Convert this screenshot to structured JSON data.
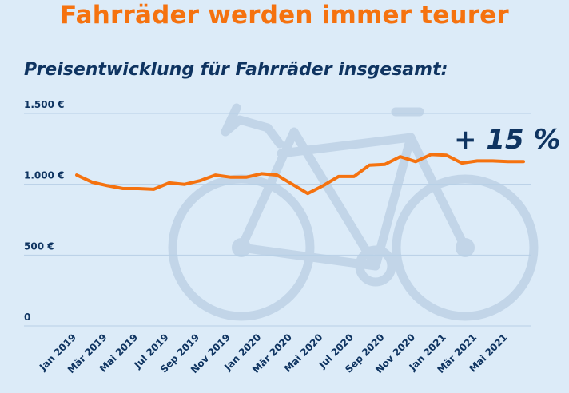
{
  "headline": "Fahrräder werden immer teurer",
  "colors": {
    "background": "#dcebf8",
    "headline": "#f5720f",
    "text": "#0f3461",
    "line": "#f5720f",
    "bike": "#c2d5e8",
    "grid": "#b7cfe6"
  },
  "icons": [
    "bicycle-icon"
  ],
  "chart_data": {
    "type": "line",
    "title": "Preisentwicklung für Fahrräder insgesamt:",
    "xlabel": "",
    "ylabel": "",
    "ylim": [
      0,
      1500
    ],
    "yticks": [
      0,
      500,
      1000,
      1500
    ],
    "ytick_labels": [
      "0",
      "500 €",
      "1.000 €",
      "1.500 €"
    ],
    "grid": true,
    "x": [
      "Jan 2019",
      "Feb 2019",
      "Mär 2019",
      "Apr 2019",
      "Mai 2019",
      "Jun 2019",
      "Jul 2019",
      "Aug 2019",
      "Sep 2019",
      "Okt 2019",
      "Nov 2019",
      "Dez 2019",
      "Jan 2020",
      "Feb 2020",
      "Mär 2020",
      "Apr 2020",
      "Mai 2020",
      "Jun 2020",
      "Jul 2020",
      "Aug 2020",
      "Sep 2020",
      "Okt 2020",
      "Nov 2020",
      "Dez 2020",
      "Jan 2021",
      "Feb 2021",
      "Mär 2021",
      "Apr 2021",
      "Mai 2021",
      "Jun 2021"
    ],
    "xtick_labels": [
      "Jan 2019",
      "Mär 2019",
      "Mai 2019",
      "Jul 2019",
      "Sep 2019",
      "Nov 2019",
      "Jan 2020",
      "Mär 2020",
      "Mai 2020",
      "Jul 2020",
      "Sep 2020",
      "Nov 2020",
      "Jan 2021",
      "Mär 2021",
      "Mai 2021"
    ],
    "series": [
      {
        "values": [
          1065,
          1015,
          990,
          970,
          970,
          965,
          1010,
          1000,
          1025,
          1065,
          1050,
          1050,
          1075,
          1065,
          1000,
          935,
          990,
          1055,
          1055,
          1135,
          1140,
          1195,
          1160,
          1210,
          1205,
          1150,
          1165,
          1165,
          1160,
          1160
        ]
      }
    ],
    "annotation": "+ 15 %"
  }
}
